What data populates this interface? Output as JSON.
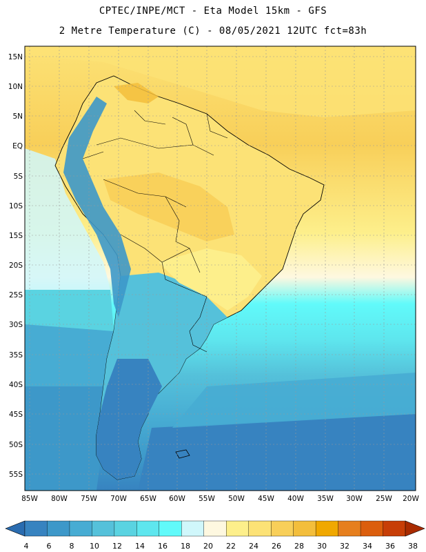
{
  "title": {
    "line1": "CPTEC/INPE/MCT -  Eta Model 15km - GFS",
    "line2": "2 Metre Temperature (C) - 08/05/2021 12UTC fct=83h"
  },
  "map": {
    "lat_labels": [
      "15N",
      "10N",
      "5N",
      "EQ",
      "5S",
      "10S",
      "15S",
      "20S",
      "25S",
      "30S",
      "35S",
      "40S",
      "45S",
      "50S",
      "55S"
    ],
    "lon_labels": [
      "85W",
      "80W",
      "75W",
      "70W",
      "65W",
      "60W",
      "55W",
      "50W",
      "45W",
      "40W",
      "35W",
      "30W",
      "25W",
      "20W"
    ]
  },
  "colorbar": {
    "labels": [
      "4",
      "6",
      "8",
      "10",
      "12",
      "14",
      "16",
      "18",
      "20",
      "22",
      "24",
      "26",
      "28",
      "30",
      "32",
      "34",
      "36",
      "38"
    ],
    "colors": [
      "#2a6cb0",
      "#3783c0",
      "#3d98c9",
      "#47acd3",
      "#55c1da",
      "#5ad3e1",
      "#5ee6ee",
      "#61fafa",
      "#d0f7fb",
      "#fef8e0",
      "#fdef8b",
      "#fce276",
      "#f8cf59",
      "#f3be3c",
      "#f0a800",
      "#e67f1e",
      "#db5e0d",
      "#c73e07",
      "#a92b00"
    ]
  },
  "icons": [
    "left-arrow-icon",
    "right-arrow-icon"
  ]
}
